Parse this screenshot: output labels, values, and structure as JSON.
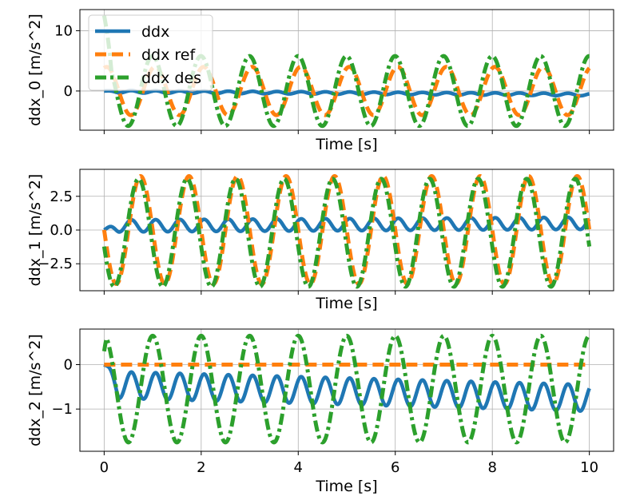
{
  "chart_data": {
    "type": "line",
    "legend": {
      "placement": "top-left",
      "entries": [
        "ddx",
        "ddx ref",
        "ddx des"
      ]
    },
    "colors": {
      "ddx": "#1f77b4",
      "ddx_ref": "#ff7f0e",
      "ddx_des": "#2ca02c"
    },
    "grid": true,
    "xlim": [
      -0.5,
      10.5
    ],
    "x_ticks": [
      0,
      2,
      4,
      6,
      8,
      10
    ],
    "x_tick_labels": [
      "0",
      "2",
      "4",
      "6",
      "8",
      "10"
    ],
    "signal": {
      "t_start": 0,
      "t_end": 10,
      "frequency_hz": 1.0
    },
    "panels": [
      {
        "xlabel": "Time [s]",
        "ylabel": "ddx_0 [m/s^2]",
        "ylim": [
          -6.5,
          13.5
        ],
        "y_ticks": [
          0,
          10
        ],
        "y_tick_labels": [
          "0",
          "10"
        ],
        "show_x_tick_labels": false,
        "ref": {
          "amplitude": 4.0,
          "phase": 1.25,
          "offset": 0.0
        },
        "des": {
          "amplitude": 5.8,
          "phase": 1.6,
          "offset": 0.0,
          "start_value": 12.5,
          "settle_time": 0.15
        },
        "ddx": {
          "amplitude": 0.2,
          "frequency_hz": 2.0,
          "offset": -0.1,
          "end_value": -0.6
        }
      },
      {
        "xlabel": "Time [s]",
        "ylabel": "ddx_1 [m/s^2]",
        "ylim": [
          -4.5,
          4.5
        ],
        "y_ticks": [
          -2.5,
          0.0,
          2.5
        ],
        "y_tick_labels": [
          "−2.5",
          "0.0",
          "2.5"
        ],
        "show_x_tick_labels": false,
        "ref": {
          "amplitude": 4.0,
          "phase": 3.14,
          "offset": 0.0
        },
        "des": {
          "amplitude": 4.0,
          "phase": 3.4,
          "offset": -0.2,
          "start_value": -3.9,
          "settle_time": 0.0
        },
        "ddx": {
          "amplitude": 0.45,
          "frequency_hz": 2.0,
          "offset": 0.3,
          "end_value": 0.5
        }
      },
      {
        "xlabel": "Time [s]",
        "ylabel": "ddx_2 [m/s^2]",
        "ylim": [
          -1.95,
          0.8
        ],
        "y_ticks": [
          -1,
          0
        ],
        "y_tick_labels": [
          "−1",
          "0"
        ],
        "show_x_tick_labels": true,
        "ref": {
          "amplitude": 0.0,
          "phase": 0.0,
          "offset": 0.0
        },
        "des": {
          "amplitude": 1.2,
          "phase": 1.57,
          "offset": -0.55,
          "start_value": 0.3,
          "settle_time": 0.05
        },
        "ddx": {
          "amplitude": 0.3,
          "frequency_hz": 2.0,
          "offset": -0.45,
          "end_value": -0.75
        }
      }
    ]
  }
}
